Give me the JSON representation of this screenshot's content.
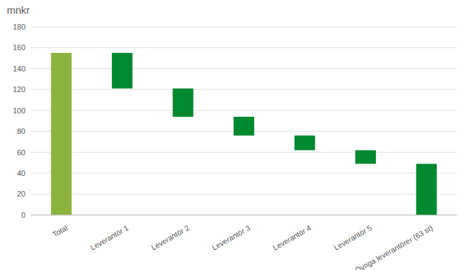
{
  "chart_data": {
    "type": "waterfall",
    "ylabel": "mnkr",
    "categories": [
      "Total",
      "Leverantör 1",
      "Leverantör 2",
      "Leverantör 3",
      "Leverantör 4",
      "Leverantör 5",
      "Övriga leverantörer (63 st)"
    ],
    "values": [
      155,
      34,
      27,
      18,
      14,
      13,
      49
    ],
    "colors": [
      "#8db33f",
      "#00892f",
      "#00892f",
      "#00892f",
      "#00892f",
      "#00892f",
      "#00892f"
    ],
    "ylim": [
      0,
      180
    ],
    "yticks": [
      0,
      20,
      40,
      60,
      80,
      100,
      120,
      140,
      160,
      180
    ],
    "grid": true
  }
}
